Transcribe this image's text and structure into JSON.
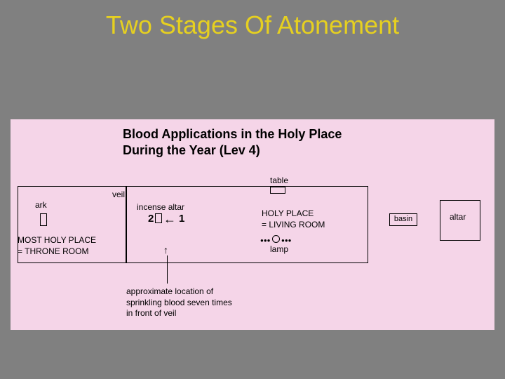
{
  "page": {
    "title": "Two Stages Of Atonement",
    "background_color": "#808080",
    "title_color": "#e6d020"
  },
  "diagram": {
    "background_color": "#f5d5e8",
    "heading_line1": "Blood Applications in the Holy Place",
    "heading_line2": "During the Year (Lev 4)",
    "most_holy": {
      "ark_label": "ark",
      "text_line1": "MOST HOLY PLACE",
      "text_line2": "= THRONE ROOM"
    },
    "veil_label": "veil",
    "holy_place": {
      "incense_label": "incense altar",
      "table_label": "table",
      "lamp_label": "lamp",
      "text_line1": "HOLY PLACE",
      "text_line2": "= LIVING ROOM",
      "num1": "1",
      "num2": "2",
      "arrow": "←"
    },
    "basin_label": "basin",
    "altar_label": "altar",
    "caption_line1": "approximate location of",
    "caption_line2": "sprinkling blood seven times",
    "caption_line3": "in front of veil",
    "arrow_up": "↑"
  }
}
